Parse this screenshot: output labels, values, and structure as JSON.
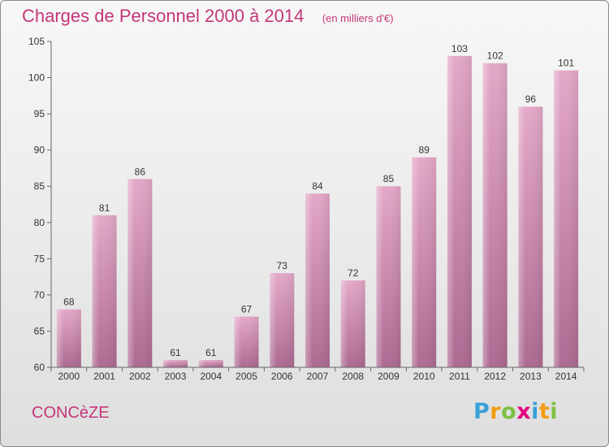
{
  "header": {
    "title": "Charges de Personnel 2000 à 2014",
    "subtitle": "(en milliers d'€)"
  },
  "footer": {
    "commune": "CONCèZE",
    "logo": [
      "P",
      "r",
      "o",
      "x",
      "i",
      "t",
      "i"
    ],
    "logo_colors": [
      "#3aa0d8",
      "#f39c12",
      "#7cc043",
      "#e5007e",
      "#3aa0d8",
      "#f39c12",
      "#7cc043"
    ]
  },
  "chart_data": {
    "type": "bar",
    "title": "Charges de Personnel 2000 à 2014",
    "subtitle": "(en milliers d'€)",
    "categories": [
      "2000",
      "2001",
      "2002",
      "2003",
      "2004",
      "2005",
      "2006",
      "2007",
      "2008",
      "2009",
      "2010",
      "2011",
      "2012",
      "2013",
      "2014"
    ],
    "values": [
      68,
      81,
      86,
      61,
      61,
      67,
      73,
      84,
      72,
      85,
      89,
      103,
      102,
      96,
      101
    ],
    "ylim": [
      60,
      105
    ],
    "yticks": [
      60,
      65,
      70,
      75,
      80,
      85,
      90,
      95,
      100,
      105
    ],
    "bar_color": "#c0699a",
    "grid": false
  }
}
